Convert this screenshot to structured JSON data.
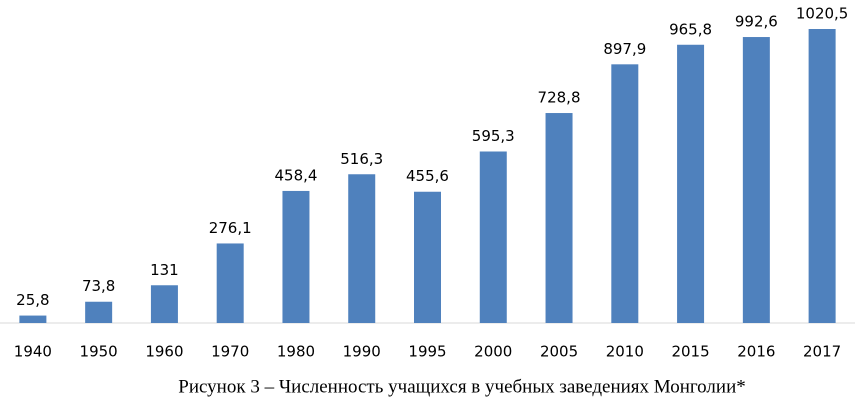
{
  "chart_data": {
    "type": "bar",
    "title": "Рисунок 3 – Численность учащихся в учебных заведениях Монголии*",
    "categories": [
      "1940",
      "1950",
      "1960",
      "1970",
      "1980",
      "1990",
      "1995",
      "2000",
      "2005",
      "2010",
      "2015",
      "2016",
      "2017"
    ],
    "values": [
      25.8,
      73.8,
      131,
      276.1,
      458.4,
      516.3,
      455.6,
      595.3,
      728.8,
      897.9,
      965.8,
      992.6,
      1020.5
    ],
    "value_labels": [
      "25,8",
      "73,8",
      "131",
      "276,1",
      "458,4",
      "516,3",
      "455,6",
      "595,3",
      "728,8",
      "897,9",
      "965,8",
      "992,6",
      "1020,5"
    ],
    "color": "#4f81bd"
  }
}
